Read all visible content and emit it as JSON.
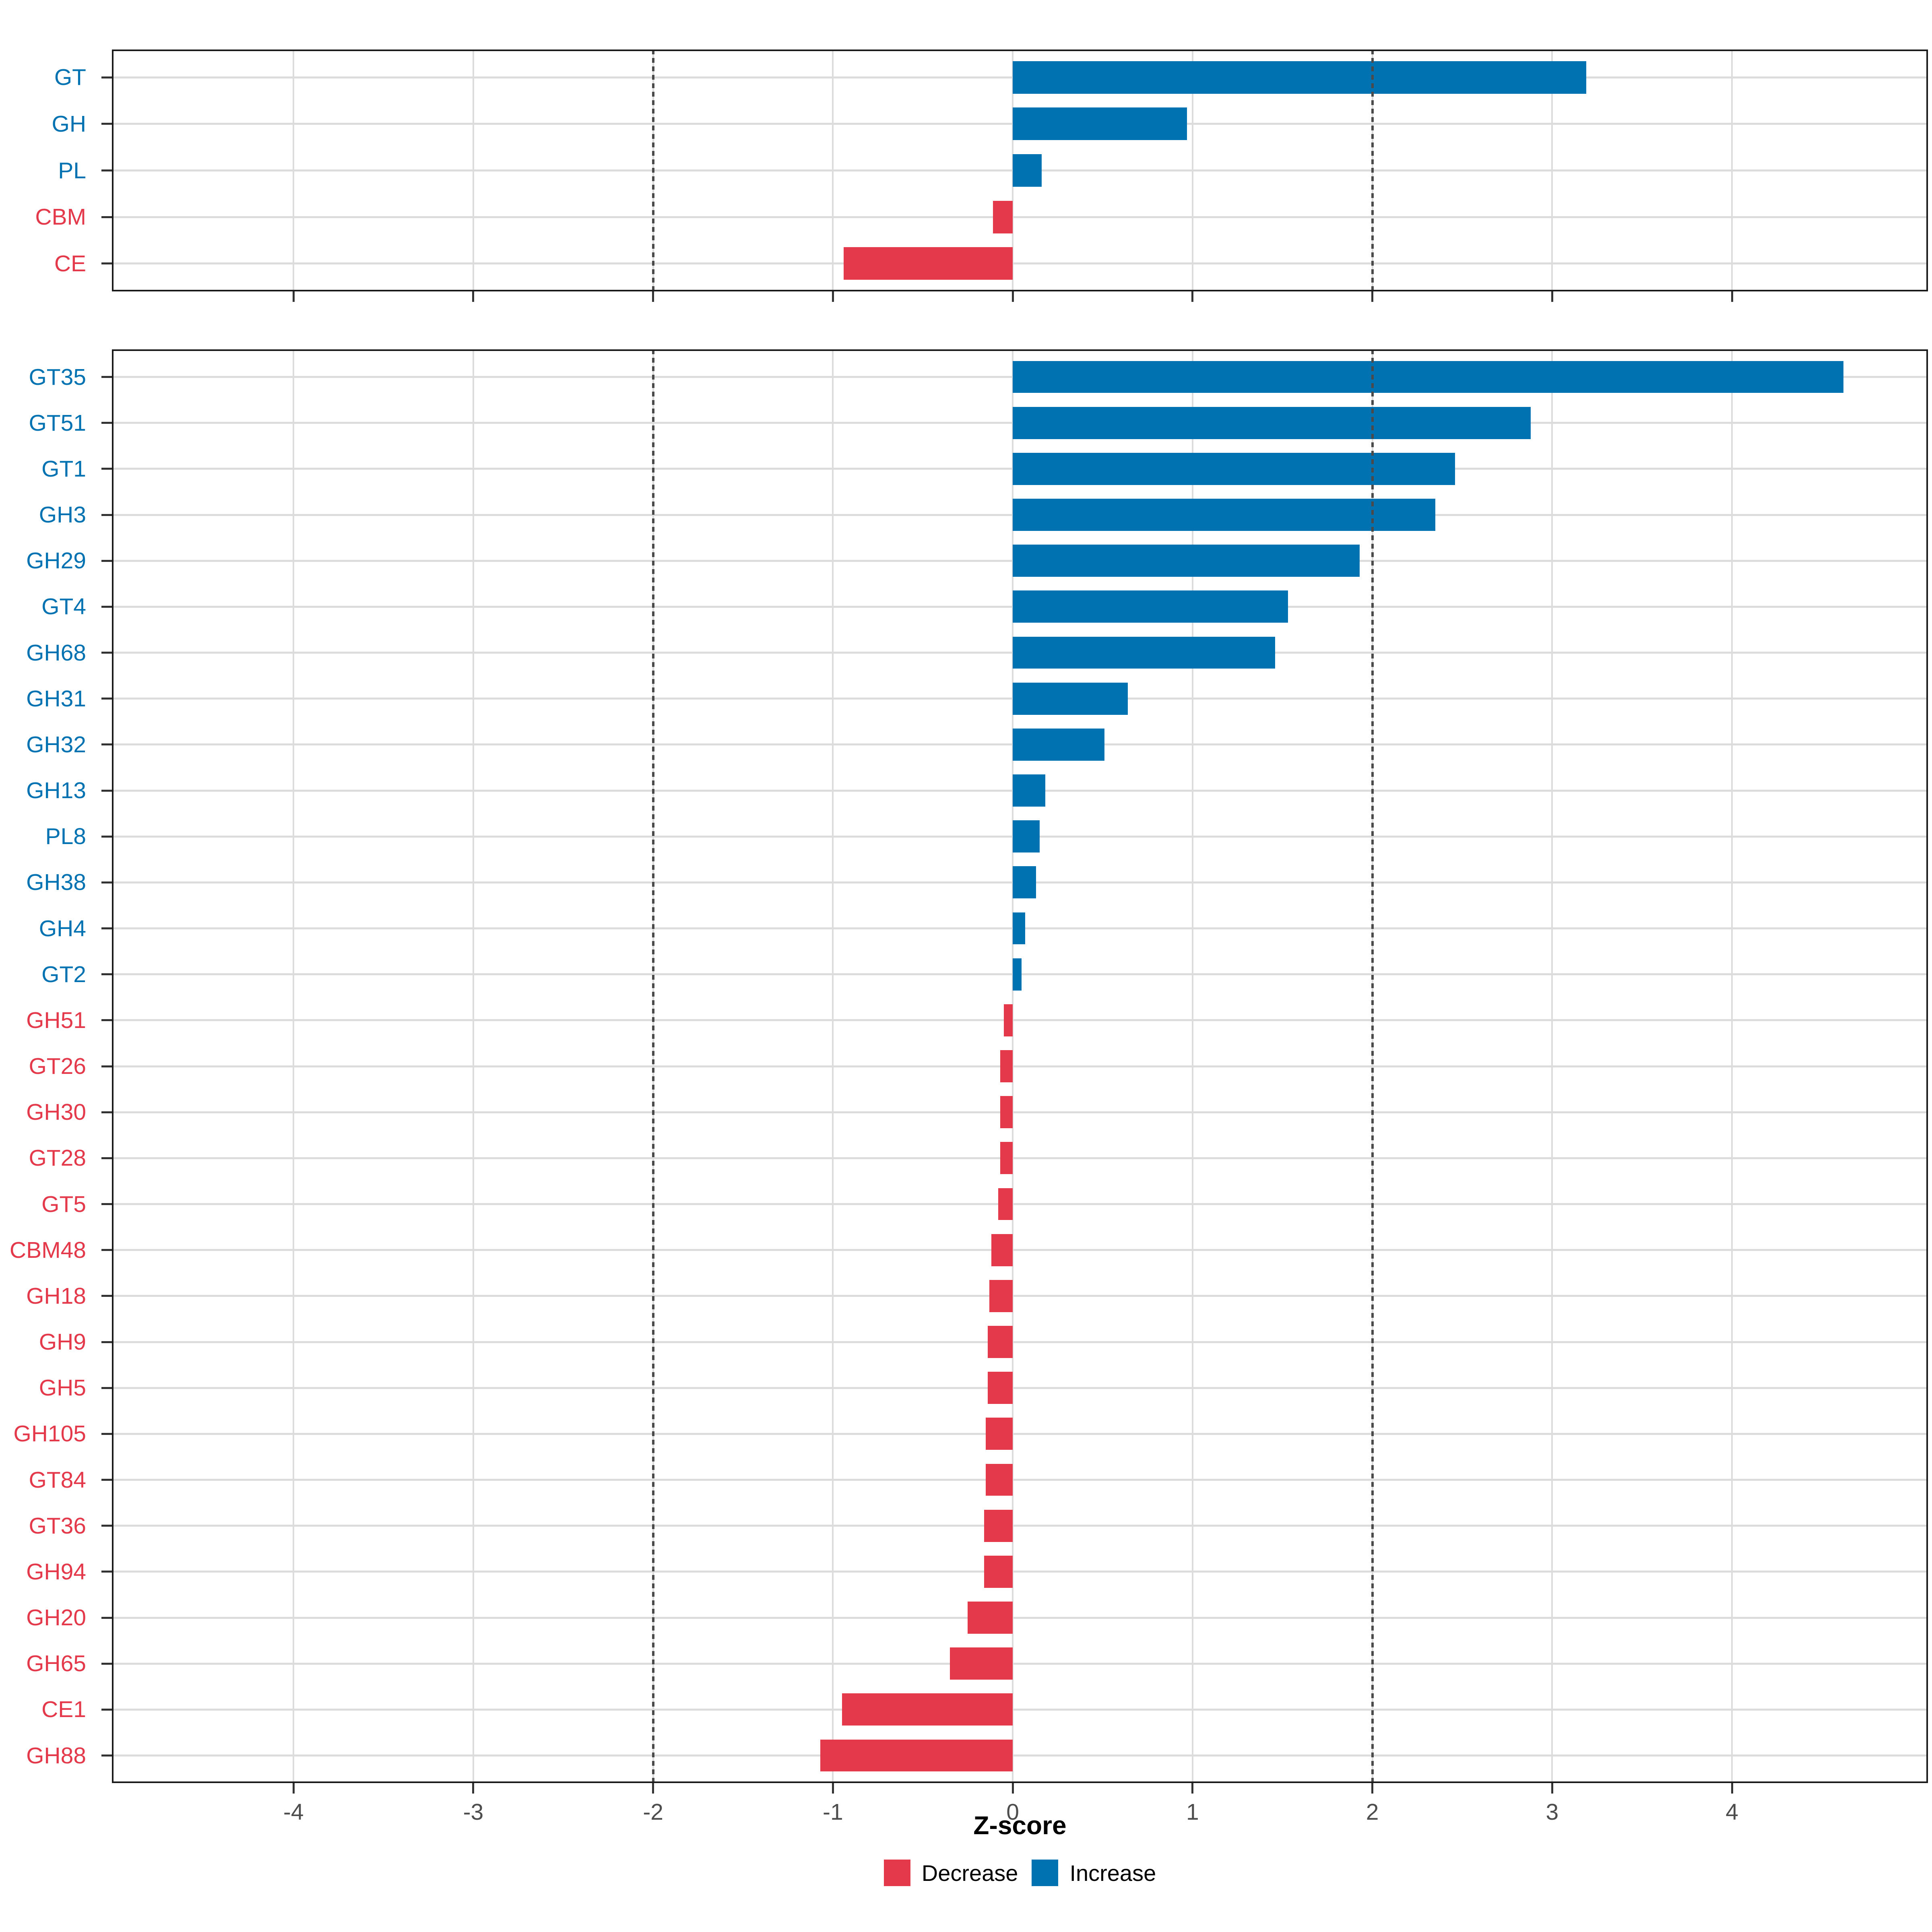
{
  "axis": {
    "title": "Z-score",
    "ticks": [
      -4,
      -3,
      -2,
      -1,
      0,
      1,
      2,
      3,
      4
    ],
    "tick_labels": [
      "-4",
      "-3",
      "-2",
      "-1",
      "0",
      "1",
      "2",
      "3",
      "4"
    ],
    "range": [
      -5.01,
      5.09
    ],
    "reference_lines": [
      -2,
      2
    ]
  },
  "colors": {
    "increase": "#0072B2",
    "decrease": "#E4394A",
    "grid": "#DCDCDC",
    "tick": "#333333",
    "tick_label": "#4D4D4D",
    "reference_line": "#4A4A4A",
    "panel_border": "#1A1A1A"
  },
  "legend": [
    {
      "label": "Decrease",
      "color": "#E4394A"
    },
    {
      "label": "Increase",
      "color": "#0072B2"
    }
  ],
  "chart_data": [
    {
      "type": "bar",
      "orientation": "horizontal",
      "panel": "cazyme-class-summary",
      "title": "",
      "xlabel": "Z-score",
      "ylabel": "",
      "xlim": [
        -5,
        5.1
      ],
      "grid": true,
      "reference_lines": [
        -2,
        2
      ],
      "categories": [
        "GT",
        "GH",
        "PL",
        "CBM",
        "CE"
      ],
      "values": [
        3.19,
        0.97,
        0.16,
        -0.11,
        -0.94
      ]
    },
    {
      "type": "bar",
      "orientation": "horizontal",
      "panel": "cazyme-family-detail",
      "title": "",
      "xlabel": "Z-score",
      "ylabel": "",
      "xlim": [
        -5,
        5.1
      ],
      "grid": true,
      "reference_lines": [
        -2,
        2
      ],
      "legend_position": "bottom",
      "categories": [
        "GT35",
        "GT51",
        "GT1",
        "GH3",
        "GH29",
        "GT4",
        "GH68",
        "GH31",
        "GH32",
        "GH13",
        "PL8",
        "GH38",
        "GH4",
        "GT2",
        "GH51",
        "GT26",
        "GH30",
        "GT28",
        "GT5",
        "CBM48",
        "GH18",
        "GH9",
        "GH5",
        "GH105",
        "GT84",
        "GT36",
        "GH94",
        "GH20",
        "GH65",
        "CE1",
        "GH88"
      ],
      "values": [
        4.62,
        2.88,
        2.46,
        2.35,
        1.93,
        1.53,
        1.46,
        0.64,
        0.51,
        0.18,
        0.15,
        0.13,
        0.07,
        0.05,
        -0.05,
        -0.07,
        -0.07,
        -0.07,
        -0.08,
        -0.12,
        -0.13,
        -0.14,
        -0.14,
        -0.15,
        -0.15,
        -0.16,
        -0.16,
        -0.25,
        -0.35,
        -0.95,
        -1.07
      ]
    }
  ]
}
